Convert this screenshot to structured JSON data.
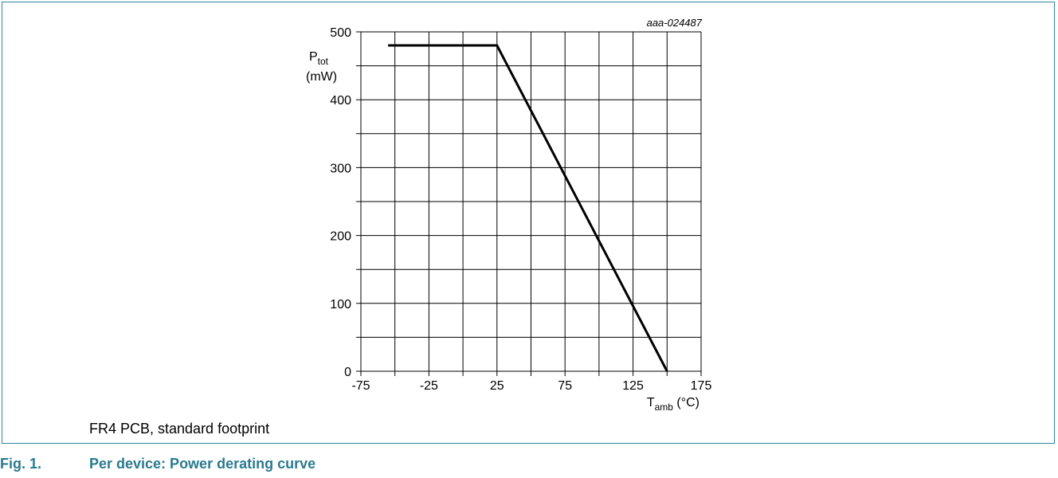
{
  "figure": {
    "code": "aaa-024487",
    "note": "FR4 PCB, standard footprint",
    "caption_number": "Fig. 1.",
    "caption_title": "Per device: Power derating curve"
  },
  "colors": {
    "frame": "#2a8a9a",
    "caption": "#2b7a8e",
    "line": "#000000",
    "grid": "#000000"
  },
  "chart_data": {
    "type": "line",
    "title": "",
    "ylabel_main": "P",
    "ylabel_sub": "tot",
    "ylabel_unit": "(mW)",
    "xlabel_main": "T",
    "xlabel_sub": "amb",
    "xlabel_unit": " (°C)",
    "xlim": [
      -75,
      175
    ],
    "ylim": [
      0,
      500
    ],
    "x_grid_step": 25,
    "y_grid_step": 50,
    "x_ticks": [
      -75,
      -25,
      25,
      75,
      125,
      175
    ],
    "y_ticks": [
      0,
      100,
      200,
      300,
      400,
      500
    ],
    "grid": true,
    "series": [
      {
        "x": [
          -55,
          25,
          150
        ],
        "y": [
          480,
          480,
          0
        ]
      }
    ]
  }
}
